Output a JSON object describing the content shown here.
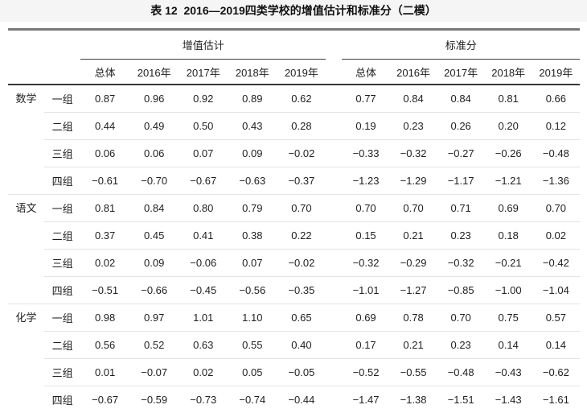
{
  "page": {
    "title": "表 12  2016—2019四类学校的增值估计和标准分（二模）"
  },
  "table": {
    "group_headers": [
      "增值估计",
      "标准分"
    ],
    "col_headers": [
      "总体",
      "2016年",
      "2017年",
      "2018年",
      "2019年"
    ],
    "sections": [
      {
        "subject": "数学",
        "rows": [
          {
            "group": "一组",
            "vae": [
              "0.87",
              "0.96",
              "0.92",
              "0.89",
              "0.62"
            ],
            "std": [
              "0.77",
              "0.84",
              "0.84",
              "0.81",
              "0.66"
            ]
          },
          {
            "group": "二组",
            "vae": [
              "0.44",
              "0.49",
              "0.50",
              "0.43",
              "0.28"
            ],
            "std": [
              "0.19",
              "0.23",
              "0.26",
              "0.20",
              "0.12"
            ]
          },
          {
            "group": "三组",
            "vae": [
              "0.06",
              "0.06",
              "0.07",
              "0.09",
              "−0.02"
            ],
            "std": [
              "−0.33",
              "−0.32",
              "−0.27",
              "−0.26",
              "−0.48"
            ]
          },
          {
            "group": "四组",
            "vae": [
              "−0.61",
              "−0.70",
              "−0.67",
              "−0.63",
              "−0.37"
            ],
            "std": [
              "−1.23",
              "−1.29",
              "−1.17",
              "−1.21",
              "−1.36"
            ]
          }
        ]
      },
      {
        "subject": "语文",
        "rows": [
          {
            "group": "一组",
            "vae": [
              "0.81",
              "0.84",
              "0.80",
              "0.79",
              "0.70"
            ],
            "std": [
              "0.70",
              "0.70",
              "0.71",
              "0.69",
              "0.70"
            ]
          },
          {
            "group": "二组",
            "vae": [
              "0.37",
              "0.45",
              "0.41",
              "0.38",
              "0.22"
            ],
            "std": [
              "0.15",
              "0.21",
              "0.23",
              "0.18",
              "0.02"
            ]
          },
          {
            "group": "三组",
            "vae": [
              "0.02",
              "0.09",
              "−0.06",
              "0.07",
              "−0.02"
            ],
            "std": [
              "−0.32",
              "−0.29",
              "−0.32",
              "−0.21",
              "−0.42"
            ]
          },
          {
            "group": "四组",
            "vae": [
              "−0.51",
              "−0.66",
              "−0.45",
              "−0.56",
              "−0.35"
            ],
            "std": [
              "−1.01",
              "−1.27",
              "−0.85",
              "−1.00",
              "−1.04"
            ]
          }
        ]
      },
      {
        "subject": "化学",
        "rows": [
          {
            "group": "一组",
            "vae": [
              "0.98",
              "0.97",
              "1.01",
              "1.10",
              "0.65"
            ],
            "std": [
              "0.69",
              "0.78",
              "0.70",
              "0.75",
              "0.57"
            ]
          },
          {
            "group": "二组",
            "vae": [
              "0.56",
              "0.52",
              "0.63",
              "0.55",
              "0.40"
            ],
            "std": [
              "0.17",
              "0.21",
              "0.23",
              "0.14",
              "0.14"
            ]
          },
          {
            "group": "三组",
            "vae": [
              "0.01",
              "−0.07",
              "0.02",
              "0.05",
              "−0.05"
            ],
            "std": [
              "−0.52",
              "−0.55",
              "−0.48",
              "−0.43",
              "−0.62"
            ]
          },
          {
            "group": "四组",
            "vae": [
              "−0.67",
              "−0.59",
              "−0.73",
              "−0.74",
              "−0.44"
            ],
            "std": [
              "−1.47",
              "−1.38",
              "−1.51",
              "−1.43",
              "−1.61"
            ]
          }
        ]
      }
    ]
  }
}
